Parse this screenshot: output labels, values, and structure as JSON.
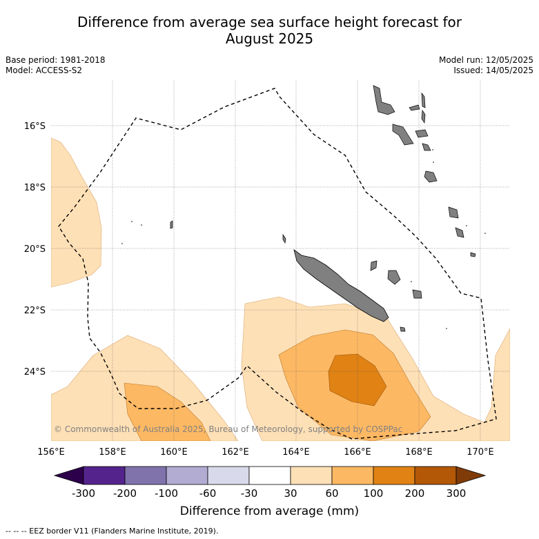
{
  "title_line1": "Difference from average sea surface height forecast for",
  "title_line2": "August 2025",
  "meta_left": {
    "base_period": "Base period: 1981-2018",
    "model": "Model: ACCESS-S2"
  },
  "meta_right": {
    "model_run": "Model run: 12/05/2025",
    "issued": "Issued: 14/05/2025"
  },
  "copyright": "© Commonwealth of Australia 2025, Bureau of Meteorology, supported by COSPPac",
  "lat_labels": [
    "16°S",
    "18°S",
    "20°S",
    "22°S",
    "24°S"
  ],
  "lon_labels": [
    "156°E",
    "158°E",
    "160°E",
    "162°E",
    "164°E",
    "166°E",
    "168°E",
    "170°E"
  ],
  "colorbar": {
    "label": "Difference from average (mm)",
    "ticks": [
      "-300",
      "-200",
      "-100",
      "-60",
      "-30",
      "30",
      "60",
      "100",
      "200",
      "300"
    ],
    "colors": [
      "#54248c",
      "#8073ac",
      "#b2abd2",
      "#d8daeb",
      "#ffffff",
      "#fee0b6",
      "#fdb863",
      "#e08214",
      "#b35806"
    ],
    "extend_low": "#2d004b",
    "extend_high": "#7f3b08"
  },
  "footnote": "-- -- -- EEZ border V11 (Flanders Marine Institute, 2019).",
  "colors": {
    "land": "#808080",
    "grid": "#555555",
    "eez": "#000000"
  }
}
